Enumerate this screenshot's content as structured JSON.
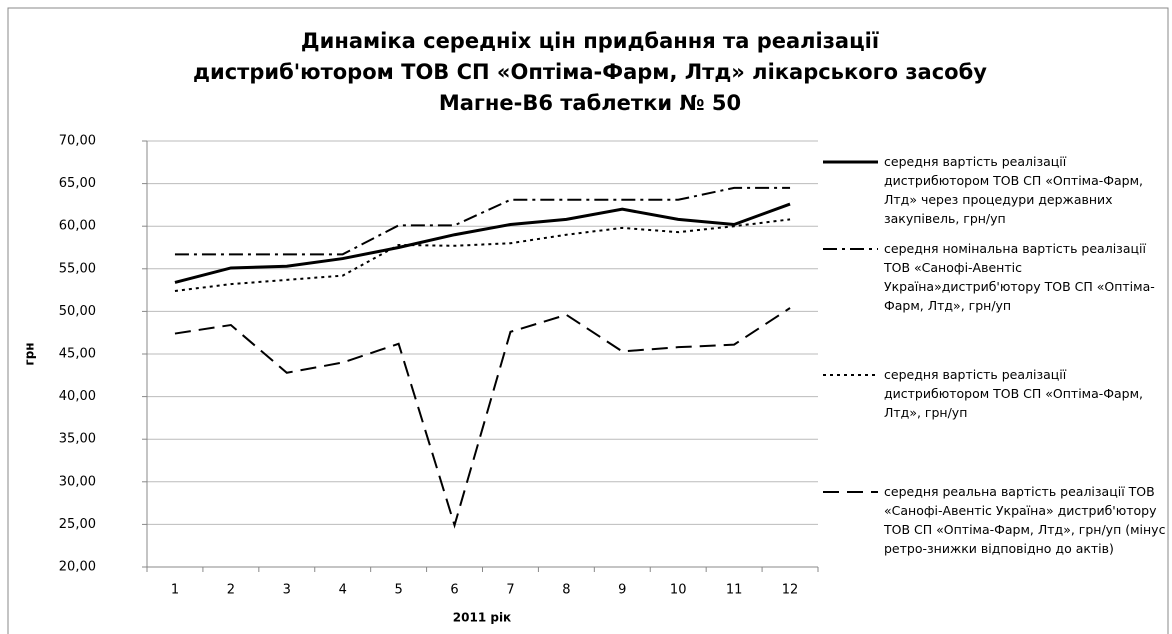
{
  "chart_data": {
    "type": "line",
    "title": [
      "Динаміка середніх цін придбання та реалізації",
      "дистриб'ютором ТОВ СП «Оптіма-Фарм, Лтд» лікарського засобу",
      "Магне-В6 таблетки № 50"
    ],
    "xlabel": "2011 рік",
    "ylabel": "грн",
    "categories": [
      "1",
      "2",
      "3",
      "4",
      "5",
      "6",
      "7",
      "8",
      "9",
      "10",
      "11",
      "12"
    ],
    "ylim": [
      20,
      70
    ],
    "yticks": [
      {
        "value": 20,
        "label": "20,00"
      },
      {
        "value": 25,
        "label": "25,00"
      },
      {
        "value": 30,
        "label": "30,00"
      },
      {
        "value": 35,
        "label": "35,00"
      },
      {
        "value": 40,
        "label": "40,00"
      },
      {
        "value": 45,
        "label": "45,00"
      },
      {
        "value": 50,
        "label": "50,00"
      },
      {
        "value": 55,
        "label": "55,00"
      },
      {
        "value": 60,
        "label": "60,00"
      },
      {
        "value": 65,
        "label": "65,00"
      },
      {
        "value": 70,
        "label": "70,00"
      }
    ],
    "grid": true,
    "legend": "right",
    "series": [
      {
        "name": "середня вартість реалізації дистрибютором ТОВ СП «Оптіма-Фарм, Лтд» через процедури державних закупівель, грн/уп",
        "color": "#000000",
        "dash": "none",
        "values": [
          53.4,
          55.1,
          55.3,
          56.2,
          57.5,
          59.0,
          60.2,
          60.8,
          62.0,
          60.8,
          60.2,
          62.6
        ]
      },
      {
        "name": "середня номінальна вартість реалізації ТОВ «Санофі-Авентіс Україна»дистриб'ютору ТОВ СП «Оптіма-Фарм, Лтд», грн/уп",
        "color": "#000000",
        "dash": "14,5,3,5",
        "values": [
          56.7,
          56.7,
          56.7,
          56.7,
          60.1,
          60.1,
          63.1,
          63.1,
          63.1,
          63.1,
          64.5,
          64.5
        ]
      },
      {
        "name": "середня вартість реалізації дистрибютором ТОВ СП «Оптіма-Фарм, Лтд», грн/уп",
        "color": "#000000",
        "dash": "3,4",
        "values": [
          52.4,
          53.2,
          53.7,
          54.2,
          57.8,
          57.7,
          58.0,
          59.0,
          59.8,
          59.3,
          60.0,
          60.8
        ]
      },
      {
        "name": "середня реальна вартість реалізації ТОВ «Санофі-Авентіс Україна» дистриб'ютору ТОВ СП «Оптіма-Фарм, Лтд», грн/уп (мінус ретро-знижки відповідно до актів)",
        "color": "#000000",
        "dash": "16,8",
        "values": [
          47.4,
          48.4,
          42.8,
          44.0,
          46.2,
          24.9,
          47.6,
          49.6,
          45.3,
          45.8,
          46.1,
          50.4
        ]
      }
    ]
  }
}
